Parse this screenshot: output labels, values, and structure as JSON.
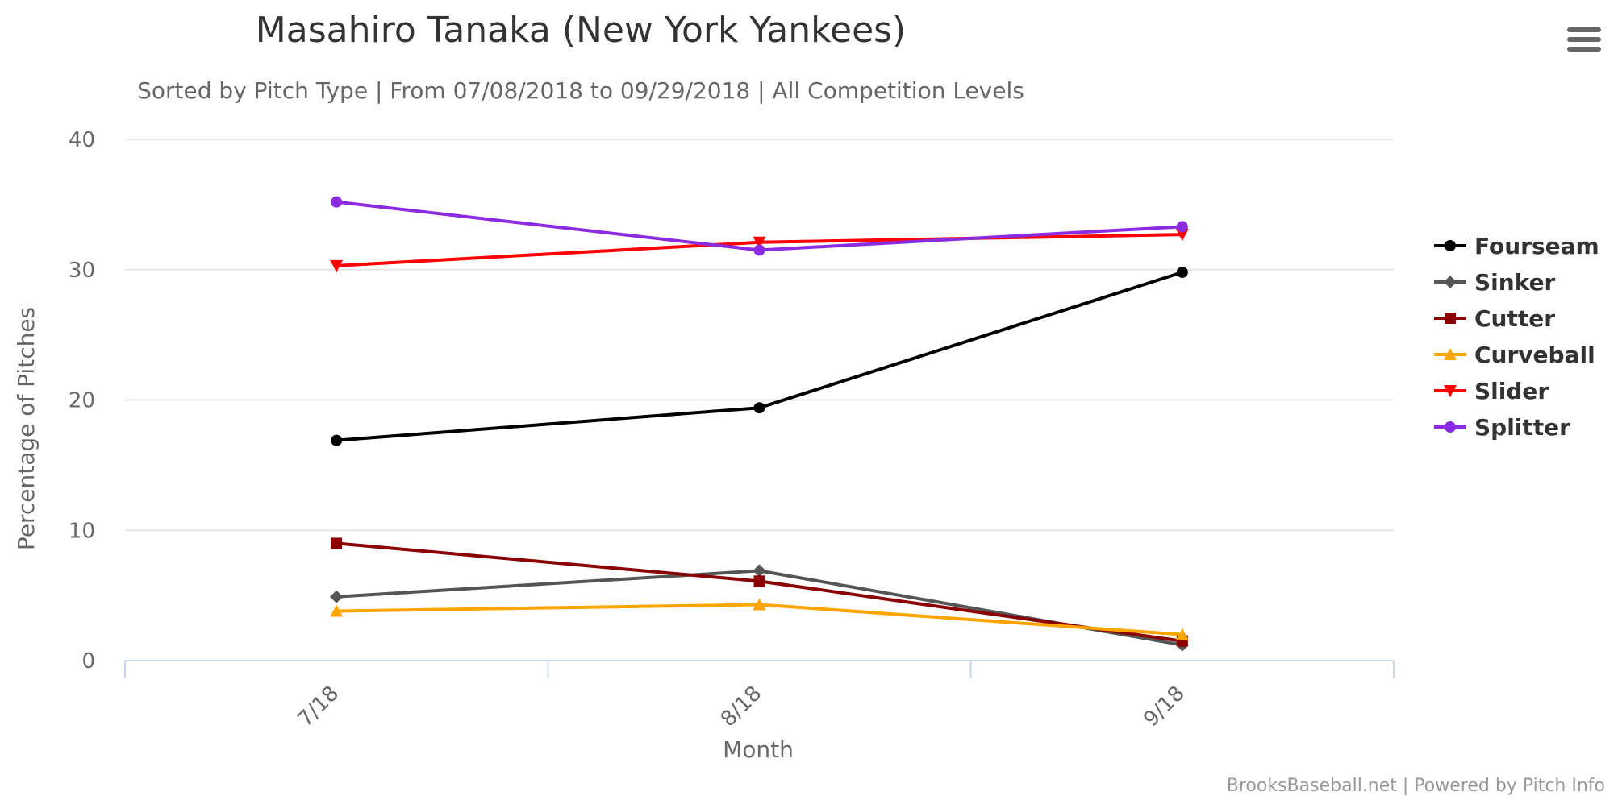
{
  "chart_data": {
    "type": "line",
    "title": "Masahiro Tanaka (New York Yankees)",
    "subtitle": "Sorted by Pitch Type | From 07/08/2018 to 09/29/2018 | All Competition Levels",
    "xlabel": "Month",
    "ylabel": "Percentage of Pitches",
    "categories": [
      "7/18",
      "8/18",
      "9/18"
    ],
    "ylim": [
      0,
      40
    ],
    "yticks": [
      0,
      10,
      20,
      30,
      40
    ],
    "grid": true,
    "legend_position": "right",
    "series": [
      {
        "name": "Fourseam",
        "color": "#000000",
        "marker": "circle",
        "values": [
          16.9,
          19.4,
          29.8
        ]
      },
      {
        "name": "Sinker",
        "color": "#555555",
        "marker": "diamond",
        "values": [
          4.9,
          6.9,
          1.2
        ]
      },
      {
        "name": "Cutter",
        "color": "#8b0000",
        "marker": "square",
        "values": [
          9.0,
          6.1,
          1.5
        ]
      },
      {
        "name": "Curveball",
        "color": "#ffa500",
        "marker": "triangle",
        "values": [
          3.8,
          4.3,
          2.0
        ]
      },
      {
        "name": "Slider",
        "color": "#ff0000",
        "marker": "triangle-down",
        "values": [
          30.3,
          32.1,
          32.7
        ]
      },
      {
        "name": "Splitter",
        "color": "#8a2be2",
        "marker": "circle",
        "values": [
          35.2,
          31.5,
          33.3
        ]
      }
    ]
  },
  "credits": "BrooksBaseball.net | Powered by Pitch Info",
  "menu_icon": "hamburger-menu-icon"
}
